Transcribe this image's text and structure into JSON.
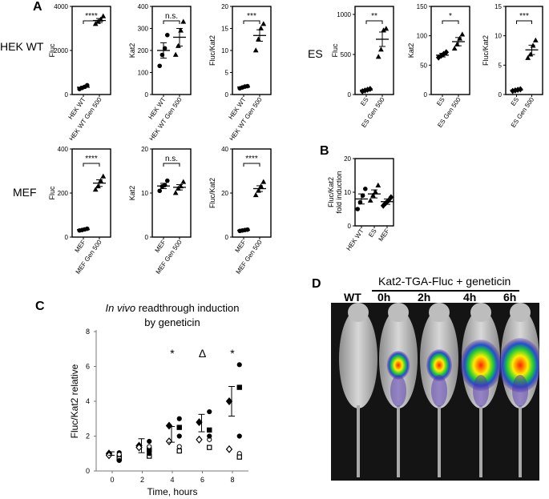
{
  "panels": {
    "a": "A",
    "b": "B",
    "c": "C",
    "d": "D"
  },
  "row_labels": {
    "hek": "HEK WT",
    "es": "ES",
    "mef": "MEF"
  },
  "chart_data": [
    {
      "id": "hek_fluc",
      "type": "scatter",
      "ylabel": "Fluc",
      "yticks": [
        "0",
        "2000",
        "4000"
      ],
      "ylim": [
        0,
        4000
      ],
      "categories": [
        "HEK WT",
        "HEK WT Gen 500"
      ],
      "points": [
        [
          250,
          300,
          350,
          420
        ],
        [
          3200,
          3300,
          3400,
          3550
        ]
      ],
      "mean": [
        330,
        3360
      ],
      "sem": [
        45,
        90
      ],
      "significance": "****",
      "markers": [
        "circle",
        "triangle"
      ]
    },
    {
      "id": "hek_kat2",
      "type": "scatter",
      "ylabel": "Kat2",
      "yticks": [
        "0",
        "100",
        "200",
        "300",
        "400"
      ],
      "ylim": [
        0,
        400
      ],
      "categories": [
        "HEK WT",
        "HEK WT Gen 500"
      ],
      "points": [
        [
          130,
          180,
          210,
          270
        ],
        [
          180,
          220,
          290,
          330
        ]
      ],
      "mean": [
        200,
        260
      ],
      "sem": [
        35,
        40
      ],
      "significance": "n.s.",
      "markers": [
        "circle",
        "triangle"
      ]
    },
    {
      "id": "hek_ratio",
      "type": "scatter",
      "ylabel": "Fluc/Kat2",
      "yticks": [
        "0",
        "5",
        "10",
        "15",
        "20"
      ],
      "ylim": [
        0,
        20
      ],
      "categories": [
        "HEK WT",
        "HEK WT Gen 500"
      ],
      "points": [
        [
          1.4,
          1.6,
          1.8,
          1.9
        ],
        [
          10,
          12.5,
          15,
          16
        ]
      ],
      "mean": [
        1.7,
        13.4
      ],
      "sem": [
        0.1,
        1.3
      ],
      "significance": "***",
      "markers": [
        "circle",
        "triangle"
      ]
    },
    {
      "id": "es_fluc",
      "type": "scatter",
      "ylabel": "Fluc",
      "yticks": [
        "0",
        "500",
        "1000"
      ],
      "ylim": [
        0,
        1100
      ],
      "categories": [
        "ES",
        "ES Gen 500"
      ],
      "points": [
        [
          40,
          50,
          60,
          70
        ],
        [
          470,
          560,
          800,
          820
        ]
      ],
      "mean": [
        55,
        690
      ],
      "sem": [
        8,
        90
      ],
      "significance": "**",
      "markers": [
        "diamond",
        "triangle"
      ]
    },
    {
      "id": "es_kat2",
      "type": "scatter",
      "ylabel": "Kat2",
      "yticks": [
        "0",
        "50",
        "100",
        "150"
      ],
      "ylim": [
        0,
        150
      ],
      "categories": [
        "ES",
        "ES Gen 500"
      ],
      "points": [
        [
          63,
          66,
          69,
          72
        ],
        [
          78,
          85,
          95,
          102
        ]
      ],
      "mean": [
        67,
        90
      ],
      "sem": [
        3,
        7
      ],
      "significance": "*",
      "markers": [
        "diamond",
        "triangle"
      ]
    },
    {
      "id": "es_ratio",
      "type": "scatter",
      "ylabel": "Fluc/Kat2",
      "yticks": [
        "0",
        "5",
        "10",
        "15"
      ],
      "ylim": [
        0,
        15
      ],
      "categories": [
        "ES",
        "ES Gen 500"
      ],
      "points": [
        [
          0.6,
          0.7,
          0.8,
          0.9
        ],
        [
          6.2,
          6.8,
          8.3,
          9.2
        ]
      ],
      "mean": [
        0.75,
        7.6
      ],
      "sem": [
        0.1,
        0.8
      ],
      "significance": "***",
      "markers": [
        "diamond",
        "triangle"
      ]
    },
    {
      "id": "mef_fluc",
      "type": "scatter",
      "ylabel": "Fluc",
      "yticks": [
        "0",
        "200",
        "400"
      ],
      "ylim": [
        0,
        400
      ],
      "categories": [
        "MEF",
        "MEF Gen 500"
      ],
      "points": [
        [
          30,
          32,
          35,
          38
        ],
        [
          215,
          230,
          255,
          275
        ]
      ],
      "mean": [
        34,
        245
      ],
      "sem": [
        2,
        15
      ],
      "significance": "****",
      "markers": [
        "circle",
        "triangle"
      ]
    },
    {
      "id": "mef_kat2",
      "type": "scatter",
      "ylabel": "Kat2",
      "yticks": [
        "0",
        "10",
        "20"
      ],
      "ylim": [
        0,
        20
      ],
      "categories": [
        "MEF",
        "MEF Gen 500"
      ],
      "points": [
        [
          10.5,
          11.5,
          11.8,
          12.8
        ],
        [
          10,
          11,
          11.5,
          12.5
        ]
      ],
      "mean": [
        11.6,
        11.3
      ],
      "sem": [
        0.6,
        0.6
      ],
      "significance": "n.s.",
      "markers": [
        "circle",
        "triangle"
      ]
    },
    {
      "id": "mef_ratio",
      "type": "scatter",
      "ylabel": "Fluc/Kat2",
      "yticks": [
        "0",
        "20",
        "40"
      ],
      "ylim": [
        0,
        40
      ],
      "categories": [
        "MEF",
        "MEF Gen 500"
      ],
      "points": [
        [
          2.8,
          3.0,
          3.2,
          3.4
        ],
        [
          19,
          21,
          23,
          25
        ]
      ],
      "mean": [
        3.1,
        22
      ],
      "sem": [
        0.2,
        1.3
      ],
      "significance": "****",
      "markers": [
        "circle",
        "triangle"
      ]
    },
    {
      "id": "fold",
      "type": "scatter",
      "ylabel": "Fluc/Kat2\nfold induction",
      "yticks": [
        "0",
        "10",
        "20"
      ],
      "ylim": [
        0,
        20
      ],
      "categories": [
        "HEK WT",
        "ES",
        "MEF"
      ],
      "points": [
        [
          5,
          7,
          9,
          11
        ],
        [
          7.5,
          9,
          10,
          12
        ],
        [
          6,
          6.8,
          7.5,
          8.5
        ]
      ],
      "mean": [
        8,
        9.5,
        7.2
      ],
      "sem": [
        1.5,
        1.2,
        0.8
      ],
      "significance": "",
      "markers": [
        "circle",
        "triangle",
        "diamond"
      ]
    }
  ],
  "chart_c": {
    "type": "scatter",
    "title_italic": "In vivo",
    "title_rest": " readthrough induction",
    "title_line2": "by geneticin",
    "ylabel": "Fluc/Kat2 relative",
    "xlabel": "Time, hours",
    "xticks": [
      "0",
      "2",
      "4",
      "6",
      "8"
    ],
    "yticks": [
      "0",
      "2",
      "4",
      "6",
      "8"
    ],
    "ylim": [
      0,
      8
    ],
    "annotations": [
      {
        "x": 4,
        "label": "*"
      },
      {
        "x": 6,
        "label": "Δ"
      },
      {
        "x": 8,
        "label": "*"
      }
    ],
    "means": [
      {
        "x": 0,
        "y": 1.0,
        "sem": 0.1
      },
      {
        "x": 2,
        "y": 1.45,
        "sem": 0.4
      },
      {
        "x": 4,
        "y": 2.1,
        "sem": 0.45
      },
      {
        "x": 6,
        "y": 2.75,
        "sem": 0.5
      },
      {
        "x": 8,
        "y": 4.0,
        "sem": 0.85
      }
    ],
    "series": [
      {
        "marker": "filled-diamond",
        "points": [
          [
            0,
            1.0
          ],
          [
            2,
            1.45
          ],
          [
            4,
            2.6
          ],
          [
            6,
            2.8
          ],
          [
            8,
            4.0
          ]
        ]
      },
      {
        "marker": "open-diamond",
        "points": [
          [
            0,
            0.9
          ],
          [
            2,
            1.35
          ],
          [
            4,
            1.7
          ],
          [
            6,
            1.8
          ],
          [
            8,
            1.25
          ]
        ]
      },
      {
        "marker": "filled-circle",
        "points": [
          [
            0.2,
            1.05
          ],
          [
            2.2,
            1.7
          ],
          [
            4.2,
            3.0
          ],
          [
            6.2,
            3.4
          ],
          [
            8.2,
            6.1
          ]
        ]
      },
      {
        "marker": "filled-square",
        "points": [
          [
            0.2,
            0.8
          ],
          [
            2.2,
            1.2
          ],
          [
            4.2,
            2.5
          ],
          [
            6.2,
            2.35
          ],
          [
            8.2,
            4.8
          ]
        ]
      },
      {
        "marker": "open-circle",
        "points": [
          [
            0.2,
            0.95
          ],
          [
            2.2,
            1.4
          ],
          [
            4.2,
            1.4
          ],
          [
            6.2,
            1.8
          ],
          [
            8.2,
            1.0
          ]
        ]
      },
      {
        "marker": "open-square",
        "points": [
          [
            0.2,
            0.7
          ],
          [
            2.2,
            0.85
          ],
          [
            4.2,
            1.15
          ],
          [
            6.2,
            1.35
          ],
          [
            8.2,
            0.8
          ]
        ]
      },
      {
        "marker": "filled-circle",
        "points": [
          [
            0.2,
            0.6
          ],
          [
            2.2,
            1.0
          ],
          [
            4.2,
            2.0
          ],
          [
            6.2,
            2.0
          ],
          [
            8.2,
            2.0
          ]
        ]
      }
    ]
  },
  "panel_d": {
    "header": "Kat2-TGA-Fluc + geneticin",
    "labels": [
      "WT",
      "0h",
      "2h",
      "4h",
      "6h"
    ]
  }
}
